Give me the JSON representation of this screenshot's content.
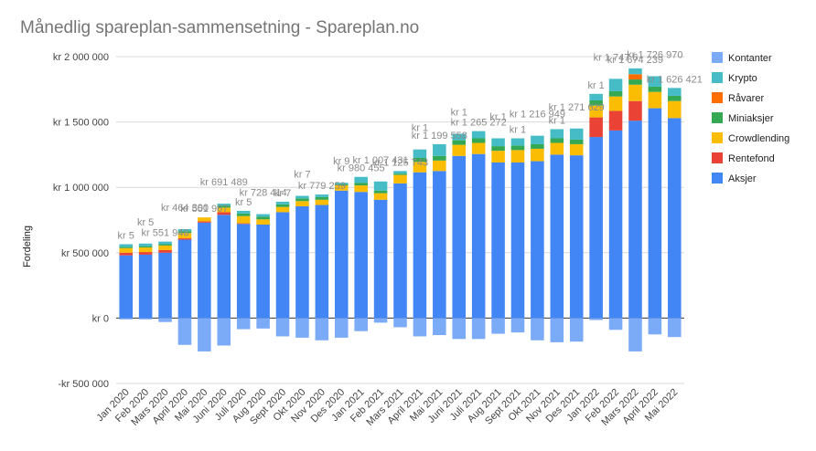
{
  "chart_data": {
    "type": "bar",
    "stacked": true,
    "title": "Månedlig spareplan-sammensetning - Spareplan.no",
    "xlabel": "",
    "ylabel": "Fordeling",
    "ylim": [
      -500000,
      2000000
    ],
    "yticks": [
      2000000,
      1500000,
      1000000,
      500000,
      0,
      -500000
    ],
    "ytick_labels": [
      "kr 2 000 000",
      "kr 1 500 000",
      "kr 1 000 000",
      "kr 500 000",
      "kr 0",
      "-kr 500 000"
    ],
    "grid": true,
    "legend_position": "right",
    "categories": [
      "Jan 2020",
      "Feb 2020",
      "Mars 2020",
      "April 2020",
      "Mai 2020",
      "Juni 2020",
      "Juli 2020",
      "Aug 2020",
      "Sept 2020",
      "Okt 2020",
      "Nov 2020",
      "Des 2020",
      "Jan 2021",
      "Feb 2021",
      "Mars 2021",
      "April 2021",
      "Mai 2021",
      "Juni 2021",
      "Juli 2021",
      "Aug 2021",
      "Sept 2021",
      "Okt 2021",
      "Nov 2021",
      "Des 2021",
      "Jan 2022",
      "Feb 2022",
      "Mars 2022",
      "April 2022",
      "Mai 2022"
    ],
    "series": [
      {
        "name": "Aksjer",
        "color": "#4285f4",
        "values": [
          480000,
          485000,
          500000,
          600000,
          730000,
          790000,
          720000,
          715000,
          810000,
          855000,
          865000,
          975000,
          965000,
          905000,
          1030000,
          1115000,
          1125000,
          1240000,
          1255000,
          1190000,
          1190000,
          1200000,
          1250000,
          1245000,
          1385000,
          1435000,
          1510000,
          1605000,
          1530000
        ]
      },
      {
        "name": "Rentefond",
        "color": "#ea4335",
        "values": [
          20000,
          20000,
          20000,
          10000,
          10000,
          20000,
          5000,
          0,
          0,
          0,
          0,
          0,
          0,
          0,
          0,
          0,
          0,
          0,
          0,
          0,
          0,
          0,
          0,
          0,
          150000,
          150000,
          150000,
          0,
          0
        ]
      },
      {
        "name": "Crowdlending",
        "color": "#fbbc04",
        "values": [
          35000,
          35000,
          35000,
          40000,
          30000,
          35000,
          55000,
          40000,
          40000,
          40000,
          40000,
          40000,
          50000,
          50000,
          65000,
          80000,
          80000,
          85000,
          85000,
          90000,
          95000,
          95000,
          90000,
          85000,
          90000,
          110000,
          125000,
          125000,
          130000
        ]
      },
      {
        "name": "Miniaksjer",
        "color": "#34a853",
        "values": [
          10000,
          10000,
          10000,
          15000,
          0,
          15000,
          20000,
          20000,
          20000,
          20000,
          20000,
          10000,
          20000,
          20000,
          10000,
          30000,
          35000,
          35000,
          35000,
          35000,
          35000,
          35000,
          35000,
          35000,
          40000,
          40000,
          40000,
          40000,
          40000
        ]
      },
      {
        "name": "Råvarer",
        "color": "#ff6d01",
        "values": [
          0,
          0,
          0,
          0,
          0,
          0,
          0,
          0,
          0,
          0,
          0,
          0,
          0,
          0,
          0,
          0,
          0,
          0,
          0,
          0,
          0,
          0,
          0,
          0,
          0,
          0,
          40000,
          0,
          0
        ]
      },
      {
        "name": "Krypto",
        "color": "#46bdc6",
        "values": [
          20000,
          20000,
          20000,
          15000,
          0,
          15000,
          20000,
          20000,
          20000,
          20000,
          20000,
          10000,
          45000,
          70000,
          20000,
          65000,
          90000,
          50000,
          55000,
          60000,
          55000,
          65000,
          70000,
          85000,
          50000,
          95000,
          45000,
          80000,
          60000
        ]
      },
      {
        "name": "Kontanter",
        "color": "#7baaf7",
        "values": [
          -10000,
          -10000,
          -30000,
          -205000,
          -255000,
          -210000,
          -85000,
          -80000,
          -140000,
          -150000,
          -170000,
          -150000,
          -100000,
          -35000,
          -70000,
          -140000,
          -130000,
          -160000,
          -160000,
          -120000,
          -110000,
          -170000,
          -185000,
          -180000,
          -15000,
          -90000,
          -255000,
          -125000,
          -145000
        ]
      }
    ],
    "data_labels": [
      {
        "index": 0,
        "text": "kr 5"
      },
      {
        "index": 1,
        "text": "kr 5"
      },
      {
        "index": 2,
        "text": "kr 551 946"
      },
      {
        "index": 3,
        "text": "kr 464 300"
      },
      {
        "index": 4,
        "text": "kr 551 967"
      },
      {
        "index": 5,
        "text": "kr 691 489"
      },
      {
        "index": 6,
        "text": "kr 5"
      },
      {
        "index": 7,
        "text": "kr 728 414"
      },
      {
        "index": 8,
        "text": "kr 7"
      },
      {
        "index": 9,
        "text": "kr 7"
      },
      {
        "index": 10,
        "text": "kr 779 259"
      },
      {
        "index": 11,
        "text": "kr 9"
      },
      {
        "index": 12,
        "text": "kr 980 455"
      },
      {
        "index": 13,
        "text": "kr 1 007 431"
      },
      {
        "index": 14,
        "text": "kr 1 125 743"
      },
      {
        "index": 15,
        "text": "kr 1"
      },
      {
        "index": 16,
        "text": "kr 1 199 558"
      },
      {
        "index": 17,
        "text": "kr 1"
      },
      {
        "index": 18,
        "text": "kr 1 265 272"
      },
      {
        "index": 19,
        "text": "kr 1"
      },
      {
        "index": 20,
        "text": "kr 1"
      },
      {
        "index": 21,
        "text": "kr 1 216 949"
      },
      {
        "index": 22,
        "text": "kr 1"
      },
      {
        "index": 23,
        "text": "kr 1 271 629"
      },
      {
        "index": 24,
        "text": "kr 1"
      },
      {
        "index": 25,
        "text": "kr 1 747 6"
      },
      {
        "index": 26,
        "text": "kr 1 674 239"
      },
      {
        "index": 27,
        "text": "kr 1 726 970"
      },
      {
        "index": 28,
        "text": "kr 1 626 421"
      }
    ]
  }
}
